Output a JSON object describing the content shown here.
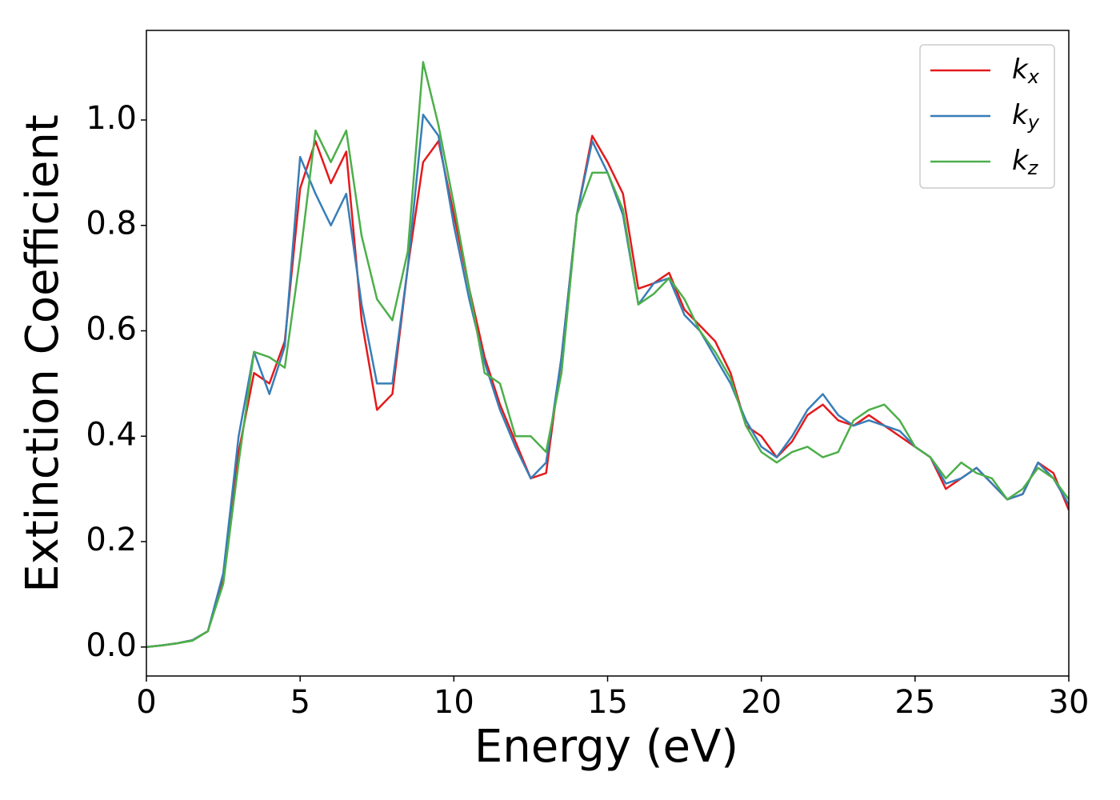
{
  "chart_data": {
    "type": "line",
    "xlabel": "Energy (eV)",
    "ylabel": "Extinction Coefficient",
    "x": [
      0,
      0.5,
      1,
      1.5,
      2,
      2.5,
      3,
      3.5,
      4,
      4.5,
      5,
      5.5,
      6,
      6.5,
      7,
      7.5,
      8,
      8.5,
      9,
      9.5,
      10,
      10.5,
      11,
      11.5,
      12,
      12.5,
      13,
      13.5,
      14,
      14.5,
      15,
      15.5,
      16,
      16.5,
      17,
      17.5,
      18,
      18.5,
      19,
      19.5,
      20,
      20.5,
      21,
      21.5,
      22,
      22.5,
      23,
      23.5,
      24,
      24.5,
      25,
      25.5,
      26,
      26.5,
      27,
      27.5,
      28,
      28.5,
      29,
      29.5,
      30
    ],
    "series": [
      {
        "name": "kx",
        "color": "#e41a1c",
        "values": [
          0,
          0.003,
          0.007,
          0.013,
          0.03,
          0.13,
          0.37,
          0.52,
          0.5,
          0.58,
          0.87,
          0.96,
          0.88,
          0.94,
          0.62,
          0.45,
          0.48,
          0.72,
          0.92,
          0.96,
          0.82,
          0.68,
          0.55,
          0.46,
          0.39,
          0.32,
          0.33,
          0.55,
          0.82,
          0.97,
          0.92,
          0.86,
          0.68,
          0.69,
          0.71,
          0.64,
          0.61,
          0.58,
          0.52,
          0.42,
          0.4,
          0.36,
          0.39,
          0.44,
          0.46,
          0.43,
          0.42,
          0.44,
          0.42,
          0.4,
          0.38,
          0.36,
          0.3,
          0.32,
          0.34,
          0.31,
          0.28,
          0.29,
          0.35,
          0.33,
          0.26
        ]
      },
      {
        "name": "ky",
        "color": "#377eb8",
        "values": [
          0,
          0.003,
          0.007,
          0.013,
          0.03,
          0.14,
          0.4,
          0.56,
          0.48,
          0.57,
          0.93,
          0.86,
          0.8,
          0.86,
          0.65,
          0.5,
          0.5,
          0.72,
          1.01,
          0.97,
          0.8,
          0.66,
          0.54,
          0.45,
          0.38,
          0.32,
          0.35,
          0.55,
          0.82,
          0.96,
          0.9,
          0.82,
          0.65,
          0.69,
          0.7,
          0.63,
          0.6,
          0.55,
          0.5,
          0.43,
          0.38,
          0.36,
          0.4,
          0.45,
          0.48,
          0.44,
          0.42,
          0.43,
          0.42,
          0.41,
          0.38,
          0.36,
          0.31,
          0.32,
          0.34,
          0.31,
          0.28,
          0.29,
          0.35,
          0.32,
          0.27
        ]
      },
      {
        "name": "kz",
        "color": "#4daf4a",
        "values": [
          0,
          0.003,
          0.007,
          0.012,
          0.03,
          0.12,
          0.35,
          0.56,
          0.55,
          0.53,
          0.74,
          0.98,
          0.92,
          0.98,
          0.78,
          0.66,
          0.62,
          0.75,
          1.11,
          0.99,
          0.84,
          0.68,
          0.52,
          0.5,
          0.4,
          0.4,
          0.37,
          0.52,
          0.82,
          0.9,
          0.9,
          0.83,
          0.65,
          0.67,
          0.7,
          0.66,
          0.6,
          0.56,
          0.51,
          0.42,
          0.37,
          0.35,
          0.37,
          0.38,
          0.36,
          0.37,
          0.43,
          0.45,
          0.46,
          0.43,
          0.38,
          0.36,
          0.32,
          0.35,
          0.33,
          0.32,
          0.28,
          0.3,
          0.34,
          0.32,
          0.28
        ]
      }
    ],
    "xlim": [
      0,
      30
    ],
    "xticks": [
      0,
      5,
      10,
      15,
      20,
      25,
      30
    ],
    "ylim": [
      -0.055,
      1.17
    ],
    "yticks": [
      {
        "value": 0,
        "label": "0.0"
      },
      0.2,
      0.4,
      0.6,
      0.8,
      {
        "value": 1,
        "label": "1.0"
      }
    ],
    "grid": false,
    "legend": "upper right"
  }
}
